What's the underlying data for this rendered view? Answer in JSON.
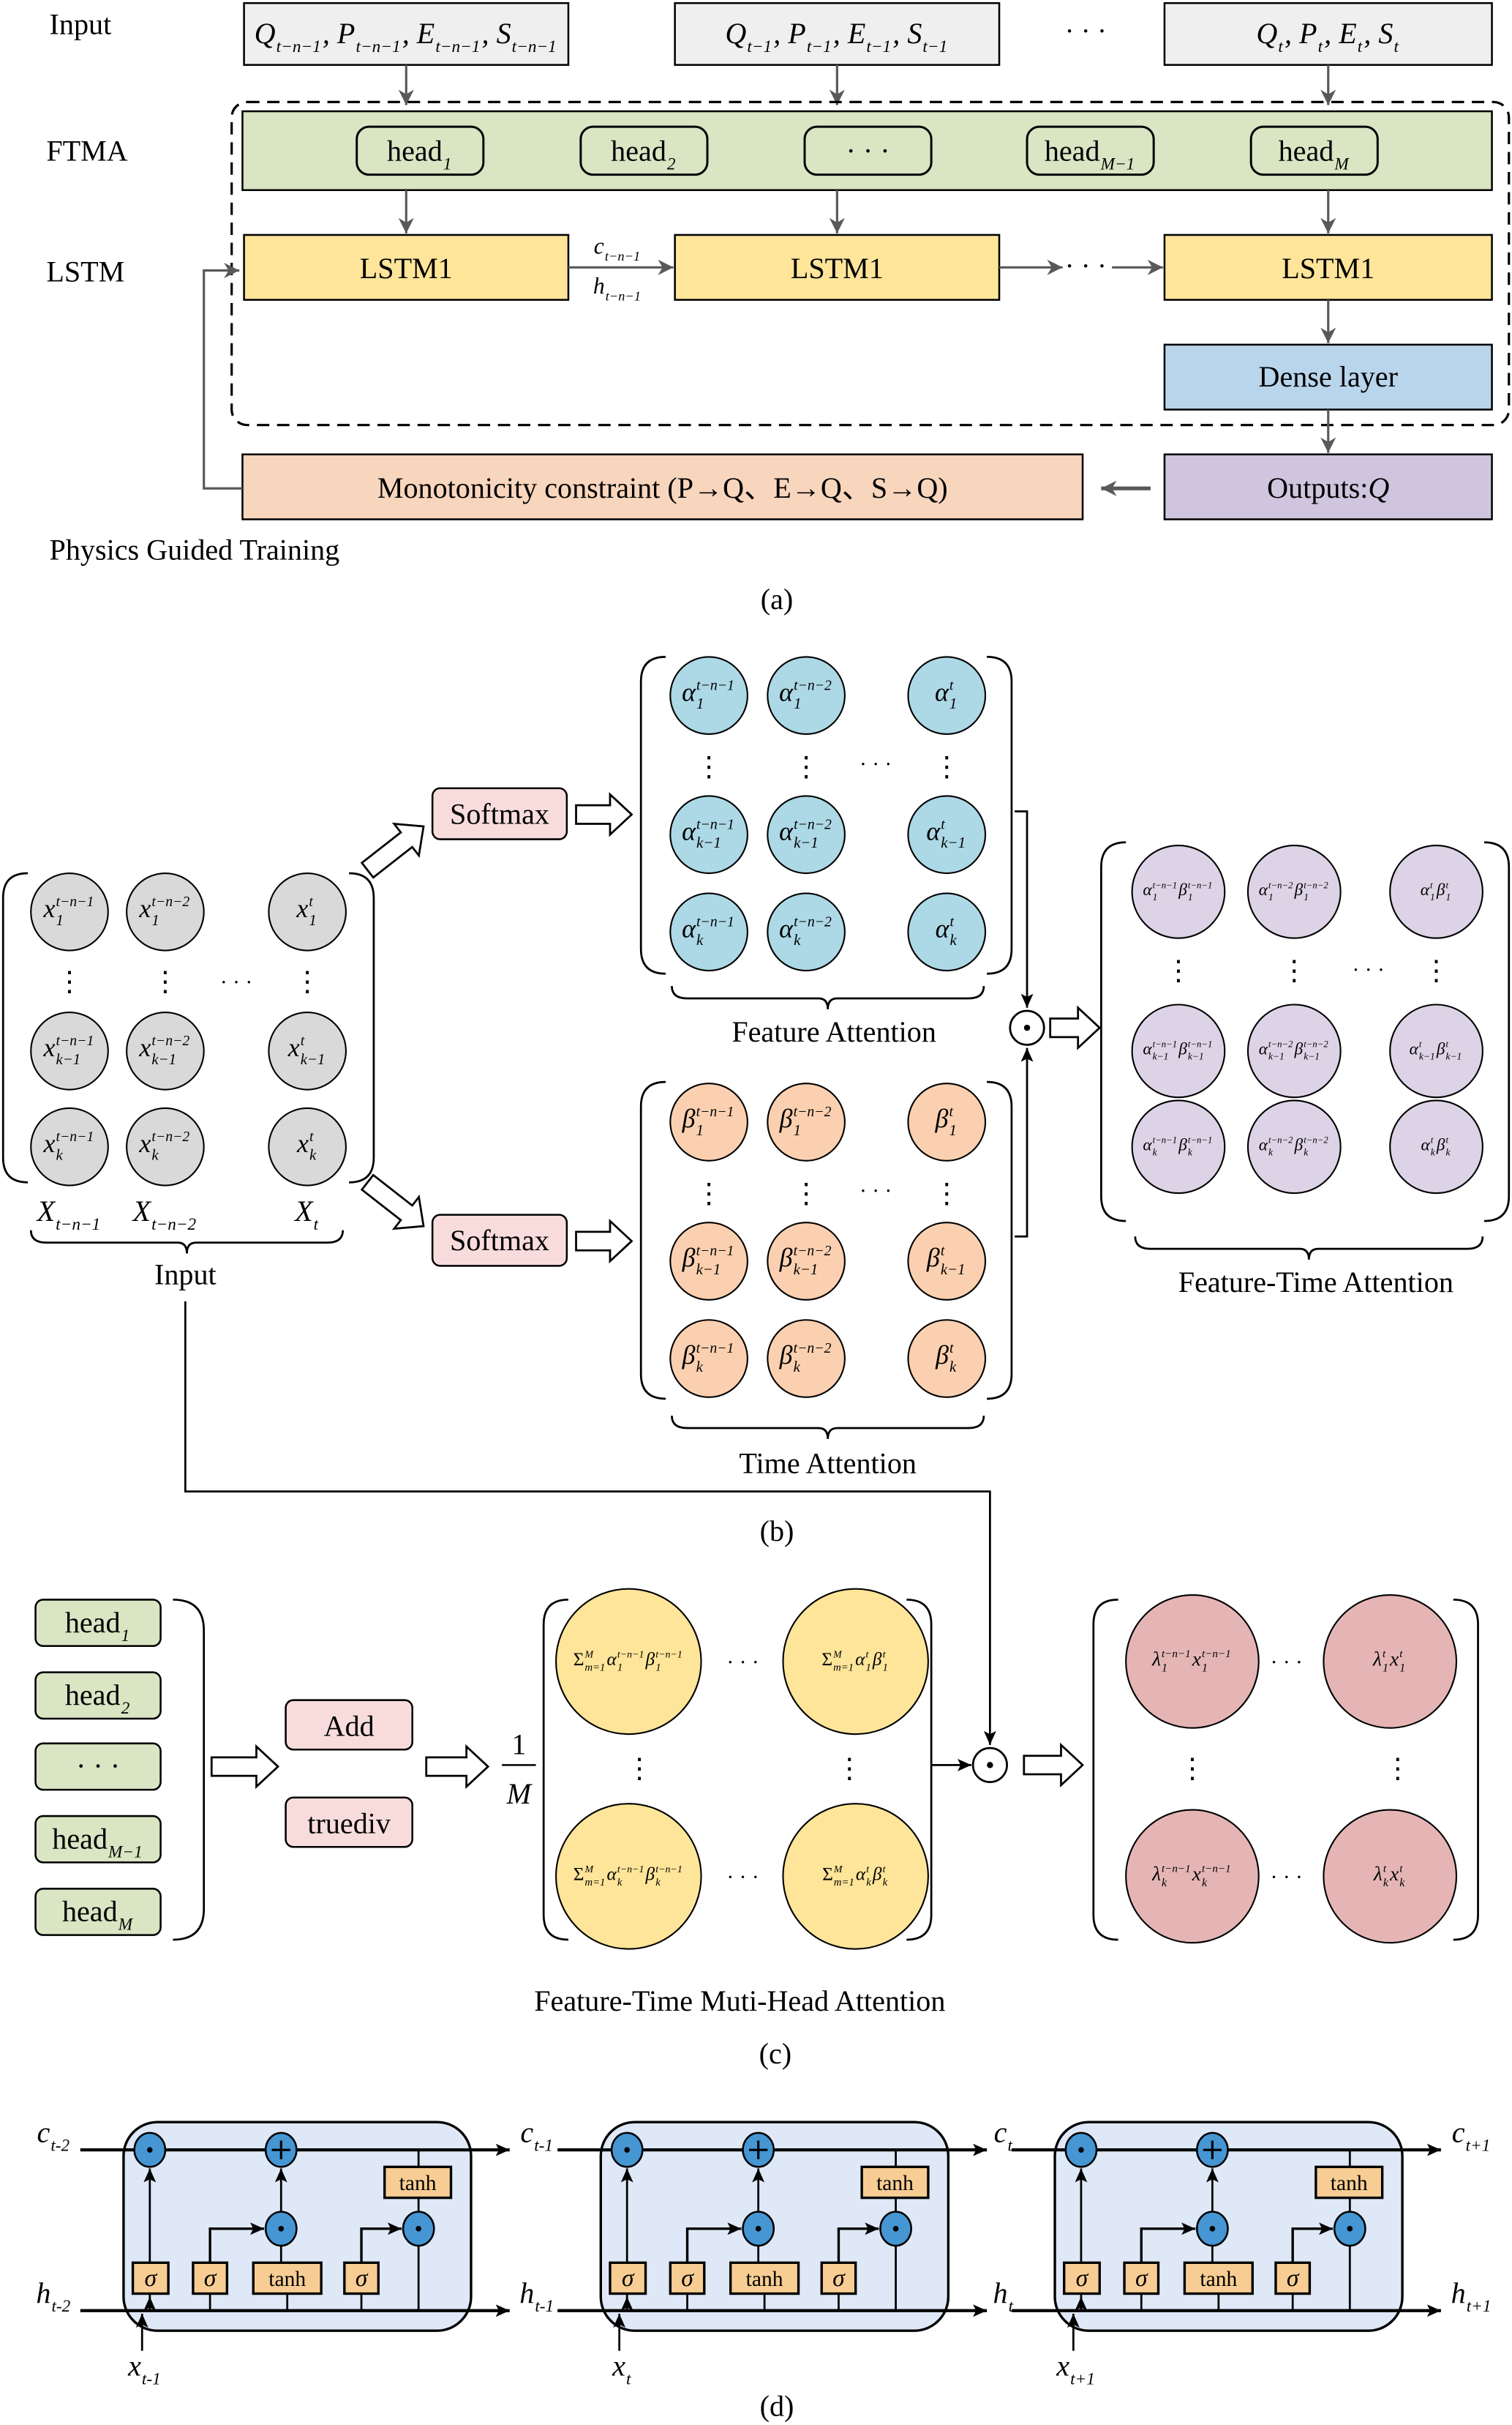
{
  "colors": {
    "input_box": "#efefef",
    "ftma": "#d9e5c3",
    "lstm": "#fee599",
    "dense": "#b9d5ec",
    "outputs": "#cfc5de",
    "constraint": "#f8d6bd",
    "softmax": "#f8dcdc",
    "input_cell": "#d9d9d9",
    "feature_cell": "#add8e6",
    "time_cell": "#fbd0b0",
    "fta_cell": "#ddd3e6",
    "sum_cell": "#fee599",
    "result_cell": "#e5b5b5",
    "lstm_cell_bg": "#dfe8f6",
    "gate": "#f7cd93",
    "operator": "#4596d3",
    "arrow_grey": "#595959"
  },
  "panel_a": {
    "row_labels": {
      "input": "Input",
      "ftma": "FTMA",
      "lstm": "LSTM"
    },
    "inputs": [
      [
        {
          "b": "Q",
          "sub": "t−n−1"
        },
        {
          "b": ", P",
          "sub": "t−n−1"
        },
        {
          "b": ", E",
          "sub": "t−n−1"
        },
        {
          "b": ", S",
          "sub": "t−n−1"
        }
      ],
      [
        {
          "b": "Q",
          "sub": "t−1"
        },
        {
          "b": ", P",
          "sub": "t−1"
        },
        {
          "b": ", E",
          "sub": "t−1"
        },
        {
          "b": ", S",
          "sub": "t−1"
        }
      ],
      [
        {
          "b": "Q",
          "sub": "t"
        },
        {
          "b": ", P",
          "sub": "t"
        },
        {
          "b": ", E",
          "sub": "t"
        },
        {
          "b": ", S",
          "sub": "t"
        }
      ]
    ],
    "ellipsis": "· · ·",
    "heads": [
      [
        {
          "b": "head",
          "sub": "1"
        }
      ],
      [
        {
          "b": "head",
          "sub": "2"
        }
      ],
      [
        {
          "b": "· · ·"
        }
      ],
      [
        {
          "b": "head",
          "sub": "M−1"
        }
      ],
      [
        {
          "b": "head",
          "sub": "M"
        }
      ]
    ],
    "lstm_blocks": [
      "LSTM1",
      "LSTM1",
      "LSTM1"
    ],
    "cell_state": [
      {
        "b": "c",
        "sub": "t−n−1"
      }
    ],
    "hidden_state": [
      {
        "b": "h",
        "sub": "t−n−1"
      }
    ],
    "dense": "Dense layer",
    "outputs": [
      {
        "b": "Outputs: "
      },
      {
        "b": "Q"
      }
    ],
    "constraint": "Monotonicity constraint (P→Q、E→Q、S→Q)",
    "physics": "Physics Guided Training",
    "caption": "(a)"
  },
  "panel_b": {
    "softmax": [
      "Softmax",
      "Softmax"
    ],
    "ellipsis": "· · ·",
    "vdots": "⋮",
    "input_matrix": {
      "cells": [
        [
          [
            {
              "b": "x",
              "sup": "t−n−1",
              "sub": "1"
            }
          ],
          [
            {
              "b": "x",
              "sup": "t−n−2",
              "sub": "1"
            }
          ],
          [
            {
              "b": "x",
              "sup": "t",
              "sub": "1"
            }
          ]
        ],
        [
          [
            {
              "b": "x",
              "sup": "t−n−1",
              "sub": "k−1"
            }
          ],
          [
            {
              "b": "x",
              "sup": "t−n−2",
              "sub": "k−1"
            }
          ],
          [
            {
              "b": "x",
              "sup": "t",
              "sub": "k−1"
            }
          ]
        ],
        [
          [
            {
              "b": "x",
              "sup": "t−n−1",
              "sub": "k"
            }
          ],
          [
            {
              "b": "x",
              "sup": "t−n−2",
              "sub": "k"
            }
          ],
          [
            {
              "b": "x",
              "sup": "t",
              "sub": "k"
            }
          ]
        ]
      ],
      "columns": [
        [
          {
            "b": "X",
            "sub": "t−n−1"
          }
        ],
        [
          {
            "b": "X",
            "sub": "t−n−2"
          }
        ],
        [
          {
            "b": "X",
            "sub": "t"
          }
        ]
      ],
      "label": "Input"
    },
    "feature_attention": {
      "cells": [
        [
          [
            {
              "b": "α",
              "sup": "t−n−1",
              "sub": "1"
            }
          ],
          [
            {
              "b": "α",
              "sup": "t−n−2",
              "sub": "1"
            }
          ],
          [
            {
              "b": "α",
              "sup": "t",
              "sub": "1"
            }
          ]
        ],
        [
          [
            {
              "b": "α",
              "sup": "t−n−1",
              "sub": "k−1"
            }
          ],
          [
            {
              "b": "α",
              "sup": "t−n−2",
              "sub": "k−1"
            }
          ],
          [
            {
              "b": "α",
              "sup": "t",
              "sub": "k−1"
            }
          ]
        ],
        [
          [
            {
              "b": "α",
              "sup": "t−n−1",
              "sub": "k"
            }
          ],
          [
            {
              "b": "α",
              "sup": "t−n−2",
              "sub": "k"
            }
          ],
          [
            {
              "b": "α",
              "sup": "t",
              "sub": "k"
            }
          ]
        ]
      ],
      "label": "Feature Attention"
    },
    "time_attention": {
      "cells": [
        [
          [
            {
              "b": "β",
              "sup": "t−n−1",
              "sub": "1"
            }
          ],
          [
            {
              "b": "β",
              "sup": "t−n−2",
              "sub": "1"
            }
          ],
          [
            {
              "b": "β",
              "sup": "t",
              "sub": "1"
            }
          ]
        ],
        [
          [
            {
              "b": "β",
              "sup": "t−n−1",
              "sub": "k−1"
            }
          ],
          [
            {
              "b": "β",
              "sup": "t−n−2",
              "sub": "k−1"
            }
          ],
          [
            {
              "b": "β",
              "sup": "t",
              "sub": "k−1"
            }
          ]
        ],
        [
          [
            {
              "b": "β",
              "sup": "t−n−1",
              "sub": "k"
            }
          ],
          [
            {
              "b": "β",
              "sup": "t−n−2",
              "sub": "k"
            }
          ],
          [
            {
              "b": "β",
              "sup": "t",
              "sub": "k"
            }
          ]
        ]
      ],
      "label": "Time Attention"
    },
    "feature_time_attention": {
      "cells": [
        [
          [
            {
              "b": "α",
              "sup": "t−n−1",
              "sub": "1"
            },
            {
              "b": "β",
              "sup": "t−n−1",
              "sub": "1"
            }
          ],
          [
            {
              "b": "α",
              "sup": "t−n−2",
              "sub": "1"
            },
            {
              "b": "β",
              "sup": "t−n−2",
              "sub": "1"
            }
          ],
          [
            {
              "b": "α",
              "sup": "t",
              "sub": "1"
            },
            {
              "b": "β",
              "sup": "t",
              "sub": "1"
            }
          ]
        ],
        [
          [
            {
              "b": "α",
              "sup": "t−n−1",
              "sub": "k−1"
            },
            {
              "b": "β",
              "sup": "t−n−1",
              "sub": "k−1"
            }
          ],
          [
            {
              "b": "α",
              "sup": "t−n−2",
              "sub": "k−1"
            },
            {
              "b": "β",
              "sup": "t−n−2",
              "sub": "k−1"
            }
          ],
          [
            {
              "b": "α",
              "sup": "t",
              "sub": "k−1"
            },
            {
              "b": "β",
              "sup": "t",
              "sub": "k−1"
            }
          ]
        ],
        [
          [
            {
              "b": "α",
              "sup": "t−n−1",
              "sub": "k"
            },
            {
              "b": "β",
              "sup": "t−n−1",
              "sub": "k"
            }
          ],
          [
            {
              "b": "α",
              "sup": "t−n−2",
              "sub": "k"
            },
            {
              "b": "β",
              "sup": "t−n−2",
              "sub": "k"
            }
          ],
          [
            {
              "b": "α",
              "sup": "t",
              "sub": "k"
            },
            {
              "b": "β",
              "sup": "t",
              "sub": "k"
            }
          ]
        ]
      ],
      "label": "Feature-Time Attention"
    },
    "odot": "⊙",
    "caption": "(b)"
  },
  "panel_c": {
    "heads": [
      [
        {
          "b": "head",
          "sub": "1"
        }
      ],
      [
        {
          "b": "head",
          "sub": "2"
        }
      ],
      [
        {
          "b": "· · ·"
        }
      ],
      [
        {
          "b": "head",
          "sub": "M−1"
        }
      ],
      [
        {
          "b": "head",
          "sub": "M"
        }
      ]
    ],
    "add": "Add",
    "truediv": "truediv",
    "fraction": {
      "numerator": "1",
      "denominator": "M"
    },
    "sum_matrix": {
      "cells": [
        [
          [
            {
              "b": "Σ",
              "sup": "M",
              "sub": "m=1"
            },
            {
              "b": "α",
              "sup": "t−n−1",
              "sub": "1"
            },
            {
              "b": "β",
              "sup": "t−n−1",
              "sub": "1"
            }
          ],
          [
            {
              "b": "Σ",
              "sup": "M",
              "sub": "m=1"
            },
            {
              "b": "α",
              "sup": "t",
              "sub": "1"
            },
            {
              "b": "β",
              "sup": "t",
              "sub": "1"
            }
          ]
        ],
        [
          [
            {
              "b": "Σ",
              "sup": "M",
              "sub": "m=1"
            },
            {
              "b": "α",
              "sup": "t−n−1",
              "sub": "k"
            },
            {
              "b": "β",
              "sup": "t−n−1",
              "sub": "k"
            }
          ],
          [
            {
              "b": "Σ",
              "sup": "M",
              "sub": "m=1"
            },
            {
              "b": "α",
              "sup": "t",
              "sub": "k"
            },
            {
              "b": "β",
              "sup": "t",
              "sub": "k"
            }
          ]
        ]
      ],
      "label": "Feature-Time Muti-Head Attention"
    },
    "result_matrix": {
      "cells": [
        [
          [
            {
              "b": "λ",
              "sup": "t−n−1",
              "sub": "1"
            },
            {
              "b": "x",
              "sup": "t−n−1",
              "sub": "1"
            }
          ],
          [
            {
              "b": "λ",
              "sup": "t",
              "sub": "1"
            },
            {
              "b": "x",
              "sup": "t",
              "sub": "1"
            }
          ]
        ],
        [
          [
            {
              "b": "λ",
              "sup": "t−n−1",
              "sub": "k"
            },
            {
              "b": "x",
              "sup": "t−n−1",
              "sub": "k"
            }
          ],
          [
            {
              "b": "λ",
              "sup": "t",
              "sub": "k"
            },
            {
              "b": "x",
              "sup": "t",
              "sub": "k"
            }
          ]
        ]
      ]
    },
    "ellipsis": "· · ·",
    "vdots": "⋮",
    "odot": "⊙",
    "caption": "(c)"
  },
  "panel_d": {
    "gate_labels": {
      "sigma": "σ",
      "tanh": "tanh"
    },
    "c_labels": [
      [
        {
          "b": "c",
          "sub": "t-2"
        }
      ],
      [
        {
          "b": "c",
          "sub": "t-1"
        }
      ],
      [
        {
          "b": "c",
          "sub": "t"
        }
      ],
      [
        {
          "b": "c",
          "sub": "t+1"
        }
      ]
    ],
    "h_labels": [
      [
        {
          "b": "h",
          "sub": "t-2"
        }
      ],
      [
        {
          "b": "h",
          "sub": "t-1"
        }
      ],
      [
        {
          "b": "h",
          "sub": "t"
        }
      ],
      [
        {
          "b": "h",
          "sub": "t+1"
        }
      ]
    ],
    "x_labels": [
      [
        {
          "b": "x",
          "sub": "t-1"
        }
      ],
      [
        {
          "b": "x",
          "sub": "t"
        }
      ],
      [
        {
          "b": "x",
          "sub": "t+1"
        }
      ]
    ],
    "caption": "(d)"
  }
}
